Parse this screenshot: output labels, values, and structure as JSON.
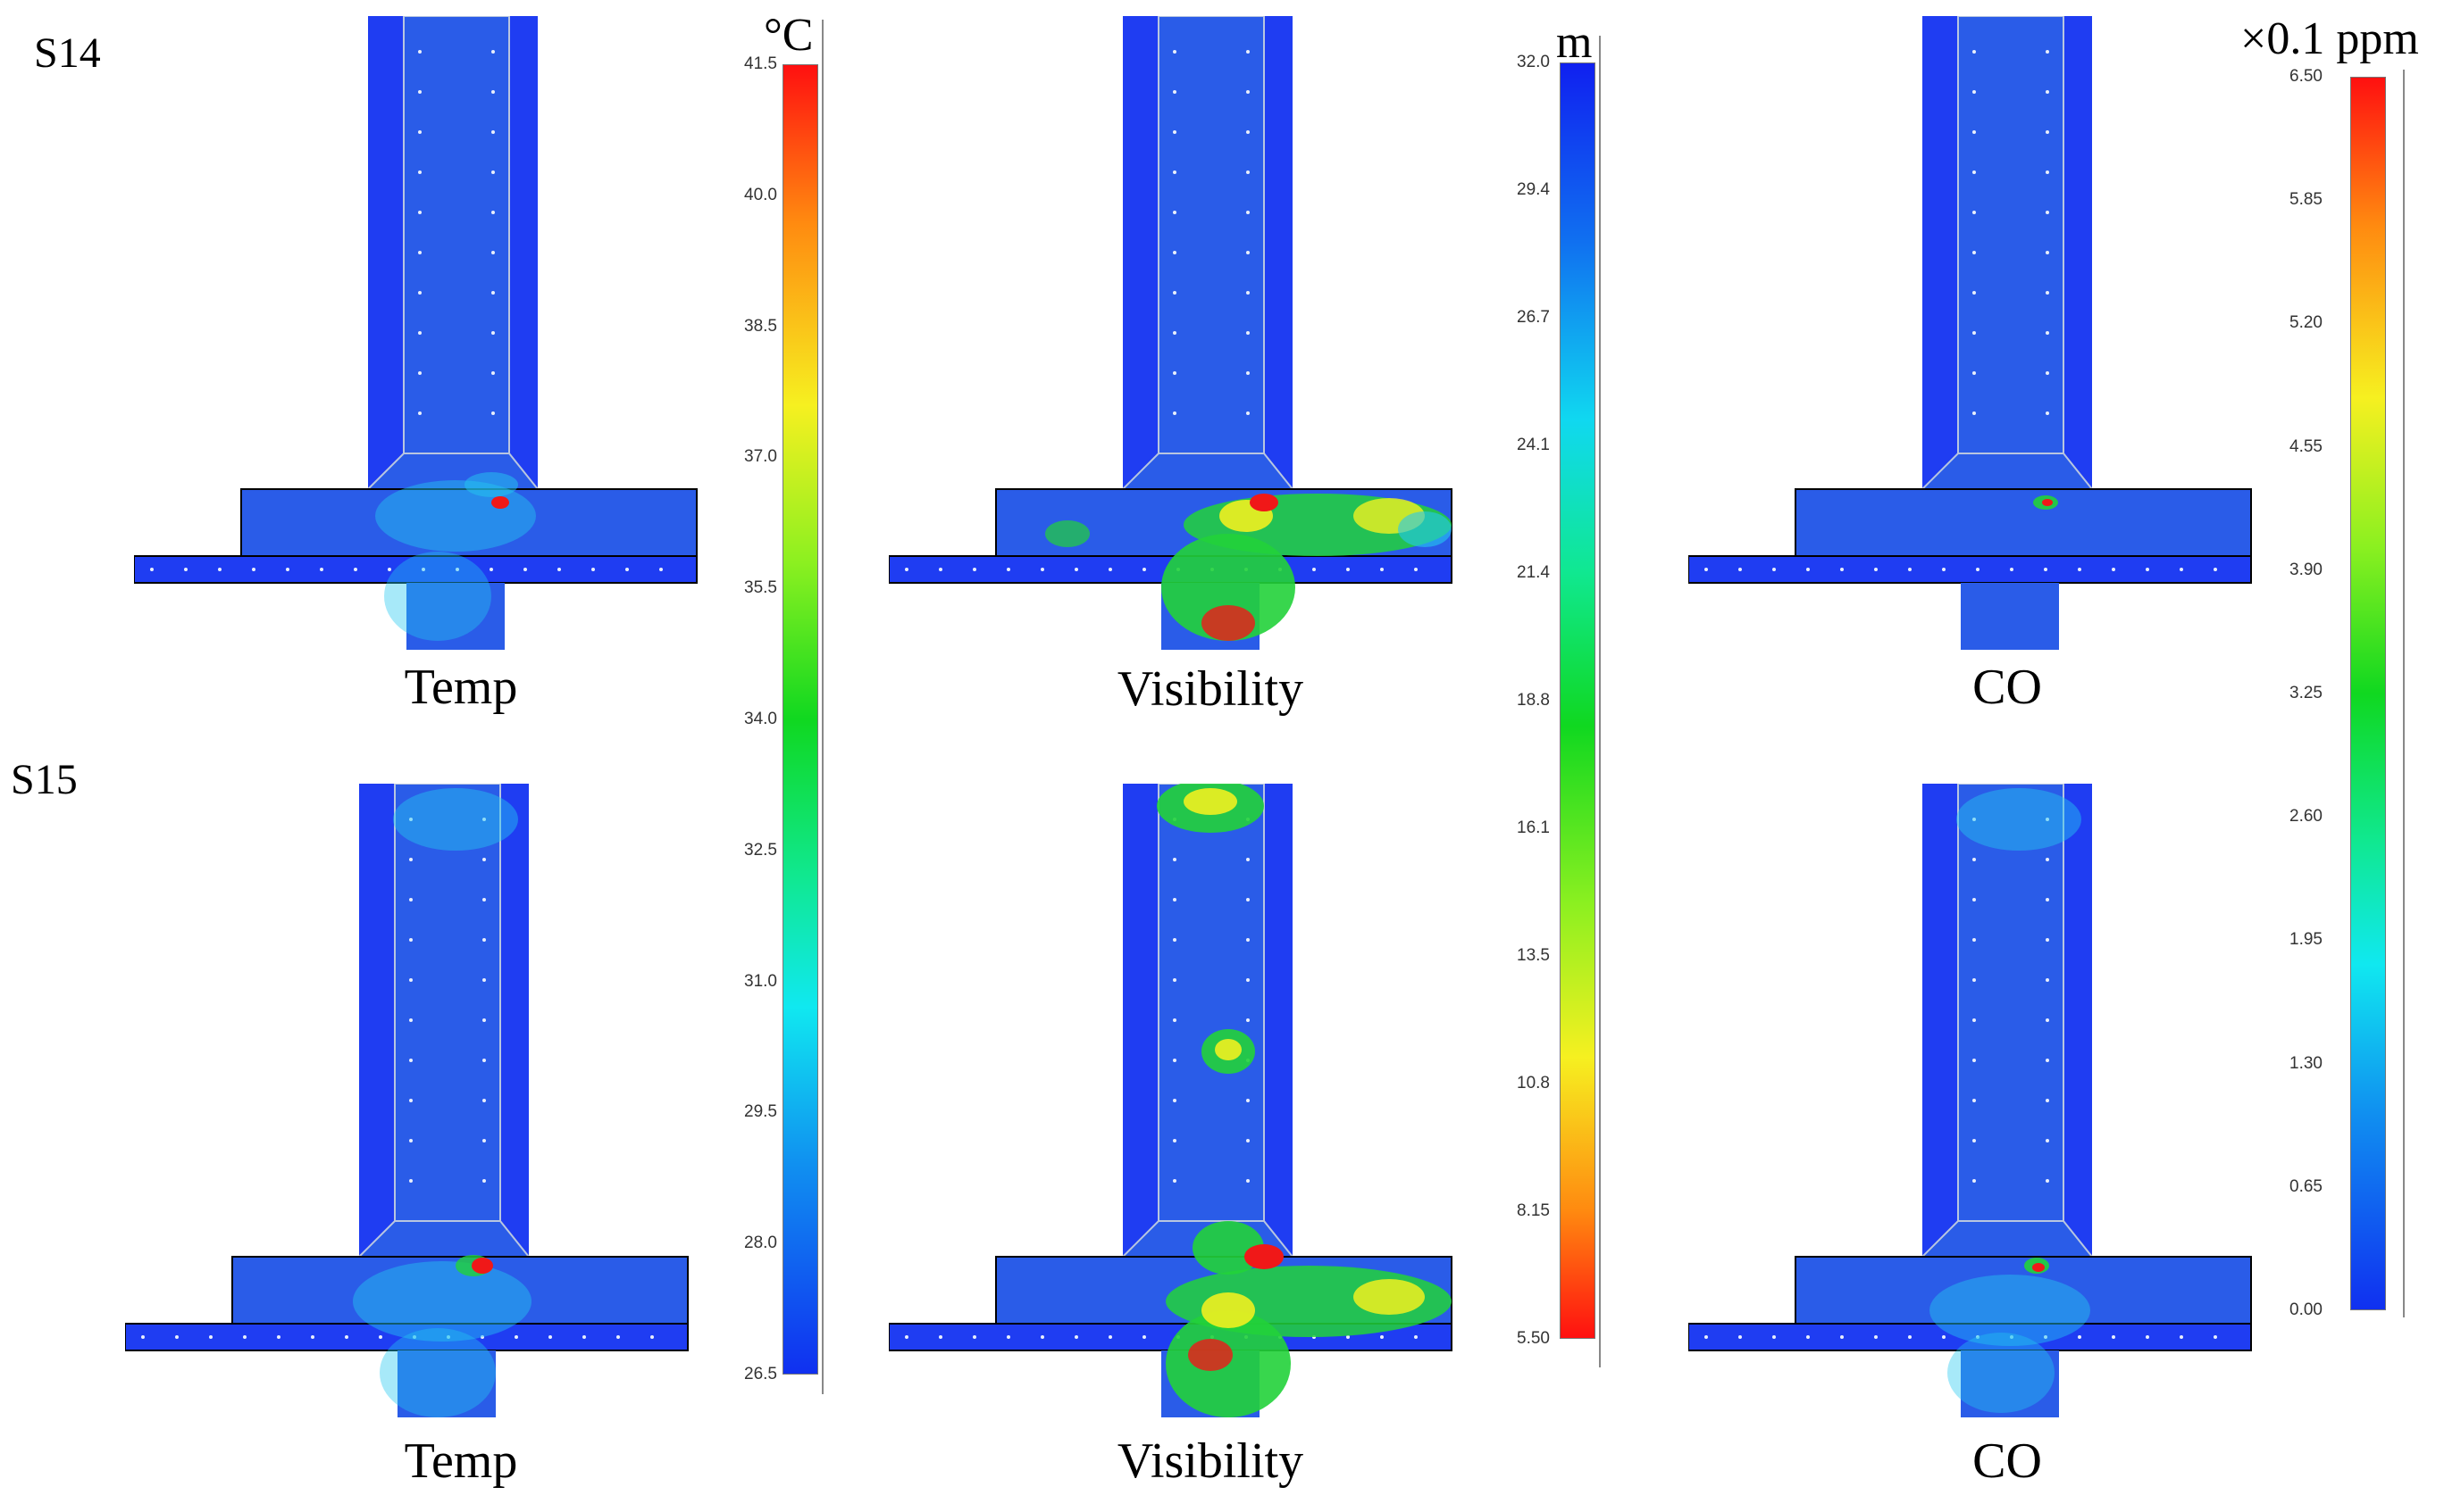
{
  "rows": [
    {
      "label": "S14"
    },
    {
      "label": "S15"
    }
  ],
  "captions": {
    "temp": "Temp",
    "visibility": "Visibility",
    "co": "CO"
  },
  "colorbars": {
    "temp": {
      "unit": "°C",
      "ticks": [
        "41.5",
        "40.0",
        "38.5",
        "37.0",
        "35.5",
        "34.0",
        "32.5",
        "31.0",
        "29.5",
        "28.0",
        "26.5"
      ],
      "reversed": false
    },
    "visibility": {
      "unit": "m",
      "ticks": [
        "32.0",
        "29.4",
        "26.7",
        "24.1",
        "21.4",
        "18.8",
        "16.1",
        "13.5",
        "10.8",
        "8.15",
        "5.50"
      ],
      "reversed": true
    },
    "co": {
      "unit": "×0.1 ppm",
      "ticks": [
        "6.50",
        "5.85",
        "5.20",
        "4.55",
        "3.90",
        "3.25",
        "2.60",
        "1.95",
        "1.30",
        "0.65",
        "0.00"
      ],
      "reversed": false
    }
  },
  "colors": {
    "background_blue": "#1f3df2",
    "corridor_blue": "#2a5ce8",
    "cyan": "#24c8f0",
    "green": "#22d23a",
    "yellow": "#f0f020",
    "orange": "#f88a18",
    "red": "#f01818"
  }
}
